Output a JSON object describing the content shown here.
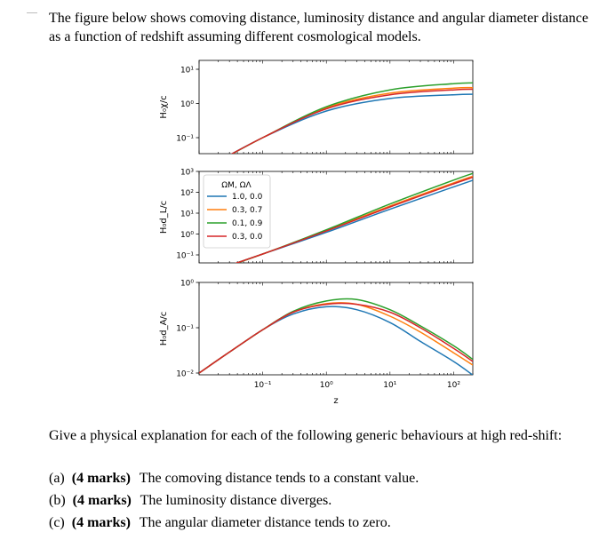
{
  "intro": "The figure below shows comoving distance, luminosity distance and angular diameter distance as a function of redshift assuming different cosmological models.",
  "question": {
    "prompt": "Give a physical explanation for each of the following generic behaviours at high red-shift:",
    "items": [
      {
        "label": "(a)",
        "marks": "(4 marks)",
        "text": "The comoving distance tends to a constant value."
      },
      {
        "label": "(b)",
        "marks": "(4 marks)",
        "text": "The luminosity distance diverges."
      },
      {
        "label": "(c)",
        "marks": "(4 marks)",
        "text": "The angular diameter distance tends to zero."
      }
    ]
  },
  "chart_data": [
    {
      "type": "line",
      "ylabel": "H₀χ/c",
      "xscale": "log",
      "yscale": "log",
      "xlim": [
        0.01,
        200
      ],
      "ylim": [
        0.05,
        20
      ],
      "yticks": [
        {
          "value": 10,
          "label": "10¹"
        },
        {
          "value": 1,
          "label": "10⁰"
        },
        {
          "value": 0.1,
          "label": "10⁻¹"
        }
      ],
      "series": [
        {
          "color": "#1f77b4",
          "x": [
            0.01,
            0.1,
            1,
            10,
            100,
            200
          ],
          "y": [
            0.01,
            0.1,
            0.6,
            1.4,
            1.8,
            1.86
          ]
        },
        {
          "color": "#ff7f0e",
          "x": [
            0.01,
            0.1,
            1,
            10,
            100,
            200
          ],
          "y": [
            0.01,
            0.1,
            0.75,
            2.0,
            2.8,
            2.9
          ]
        },
        {
          "color": "#2ca02c",
          "x": [
            0.01,
            0.1,
            1,
            10,
            100,
            200
          ],
          "y": [
            0.01,
            0.1,
            0.8,
            2.5,
            3.8,
            4.0
          ]
        },
        {
          "color": "#d62728",
          "x": [
            0.01,
            0.1,
            1,
            10,
            100,
            200
          ],
          "y": [
            0.01,
            0.1,
            0.7,
            1.8,
            2.5,
            2.6
          ]
        }
      ]
    },
    {
      "type": "line",
      "ylabel": "H₀d_L/c",
      "xscale": "log",
      "yscale": "log",
      "xlim": [
        0.01,
        200
      ],
      "ylim": [
        0.05,
        3000
      ],
      "yticks": [
        {
          "value": 1000,
          "label": "10³"
        },
        {
          "value": 100,
          "label": "10²"
        },
        {
          "value": 10,
          "label": "10¹"
        },
        {
          "value": 1,
          "label": "10⁰"
        },
        {
          "value": 0.1,
          "label": "10⁻¹"
        }
      ],
      "legend": {
        "title": "ΩM, ΩΛ",
        "placement": "upper-left",
        "entries": [
          "1.0, 0.0",
          "0.3, 0.7",
          "0.1, 0.9",
          "0.3, 0.0"
        ]
      },
      "series": [
        {
          "name": "1.0, 0.0",
          "color": "#1f77b4",
          "x": [
            0.01,
            0.1,
            1,
            10,
            100,
            200
          ],
          "y": [
            0.01,
            0.11,
            1.2,
            15.4,
            182,
            375
          ]
        },
        {
          "name": "0.3, 0.7",
          "color": "#ff7f0e",
          "x": [
            0.01,
            0.1,
            1,
            10,
            100,
            200
          ],
          "y": [
            0.01,
            0.11,
            1.5,
            22,
            283,
            583
          ]
        },
        {
          "name": "0.1, 0.9",
          "color": "#2ca02c",
          "x": [
            0.01,
            0.1,
            1,
            10,
            100,
            200
          ],
          "y": [
            0.01,
            0.11,
            1.6,
            27.5,
            384,
            804
          ]
        },
        {
          "name": "0.3, 0.0",
          "color": "#d62728",
          "x": [
            0.01,
            0.1,
            1,
            10,
            100,
            200
          ],
          "y": [
            0.01,
            0.11,
            1.4,
            19.8,
            253,
            523
          ]
        }
      ]
    },
    {
      "type": "line",
      "ylabel": "H₀d_A/c",
      "xlabel": "z",
      "xscale": "log",
      "yscale": "log",
      "xlim": [
        0.01,
        200
      ],
      "ylim": [
        0.008,
        2
      ],
      "yticks": [
        {
          "value": 1,
          "label": "10⁰"
        },
        {
          "value": 0.1,
          "label": "10⁻¹"
        },
        {
          "value": 0.01,
          "label": "10⁻²"
        }
      ],
      "xticks": [
        {
          "value": 0.1,
          "label": "10⁻¹"
        },
        {
          "value": 1,
          "label": "10⁰"
        },
        {
          "value": 10,
          "label": "10¹"
        },
        {
          "value": 100,
          "label": "10²"
        }
      ],
      "series": [
        {
          "color": "#1f77b4",
          "x": [
            0.01,
            0.03,
            0.1,
            0.3,
            1,
            3,
            10,
            30,
            100,
            200
          ],
          "y": [
            0.01,
            0.029,
            0.09,
            0.2,
            0.29,
            0.25,
            0.13,
            0.05,
            0.018,
            0.009
          ]
        },
        {
          "color": "#ff7f0e",
          "x": [
            0.01,
            0.03,
            0.1,
            0.3,
            1,
            3,
            10,
            30,
            100,
            200
          ],
          "y": [
            0.01,
            0.029,
            0.09,
            0.22,
            0.34,
            0.33,
            0.18,
            0.08,
            0.028,
            0.015
          ]
        },
        {
          "color": "#2ca02c",
          "x": [
            0.01,
            0.03,
            0.1,
            0.3,
            1,
            3,
            10,
            30,
            100,
            200
          ],
          "y": [
            0.01,
            0.029,
            0.09,
            0.23,
            0.39,
            0.42,
            0.25,
            0.11,
            0.04,
            0.02
          ]
        },
        {
          "color": "#d62728",
          "x": [
            0.01,
            0.03,
            0.1,
            0.3,
            1,
            3,
            10,
            30,
            100,
            200
          ],
          "y": [
            0.01,
            0.029,
            0.09,
            0.22,
            0.33,
            0.33,
            0.22,
            0.1,
            0.035,
            0.018
          ]
        }
      ]
    }
  ]
}
